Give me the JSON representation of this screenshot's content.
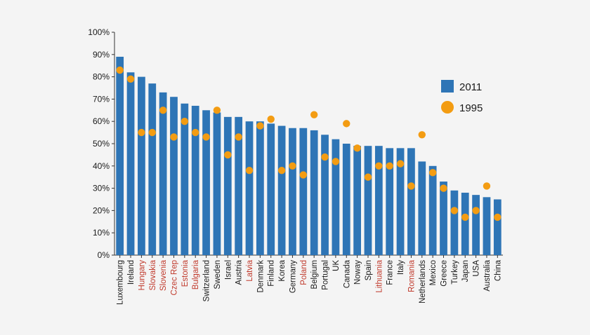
{
  "chart_data": {
    "type": "bar",
    "title": "",
    "xlabel": "",
    "ylabel": "",
    "ylim": [
      0,
      100
    ],
    "yticks": [
      "0%",
      "10%",
      "20%",
      "30%",
      "40%",
      "50%",
      "60%",
      "70%",
      "80%",
      "90%",
      "100%"
    ],
    "grid": false,
    "legend_position": "right",
    "categories": [
      "Luxembourg",
      "Ireland",
      "Hungary",
      "Slovakia",
      "Slovenia",
      "Czec Rep",
      "Estonia",
      "Bulgaria",
      "Switzerland",
      "Sweden",
      "Israel",
      "Austria",
      "Latvia",
      "Denmark",
      "Finland",
      "Korea",
      "Germany",
      "Poland",
      "Belgium",
      "Portugal",
      "UK",
      "Canada",
      "Noway",
      "Spain",
      "Lithuania",
      "France",
      "Italy",
      "Romania",
      "Netherlands",
      "Mexico",
      "Greece",
      "Turkey",
      "Japan",
      "USA",
      "Australia",
      "China"
    ],
    "highlighted_categories": [
      "Hungary",
      "Slovakia",
      "Slovenia",
      "Czec Rep",
      "Estonia",
      "Bulgaria",
      "Latvia",
      "Poland",
      "Lithuania",
      "Romania"
    ],
    "series": [
      {
        "name": "2011",
        "style": "bar",
        "color": "#2e75b6",
        "values": [
          89,
          82,
          80,
          77,
          73,
          71,
          68,
          67,
          65,
          64,
          62,
          62,
          60,
          60,
          59,
          58,
          57,
          57,
          56,
          54,
          52,
          50,
          49,
          49,
          49,
          48,
          48,
          48,
          42,
          40,
          33,
          29,
          28,
          27,
          26,
          25
        ]
      },
      {
        "name": "1995",
        "style": "marker",
        "color": "#f39c12",
        "values": [
          83,
          79,
          55,
          55,
          65,
          53,
          60,
          55,
          53,
          65,
          45,
          53,
          38,
          58,
          61,
          38,
          40,
          36,
          63,
          44,
          42,
          59,
          48,
          35,
          40,
          40,
          41,
          31,
          54,
          37,
          30,
          20,
          17,
          20,
          31,
          17
        ]
      }
    ],
    "label_colors": {
      "normal": "#1a1a1a",
      "highlight": "#c0392b"
    }
  }
}
